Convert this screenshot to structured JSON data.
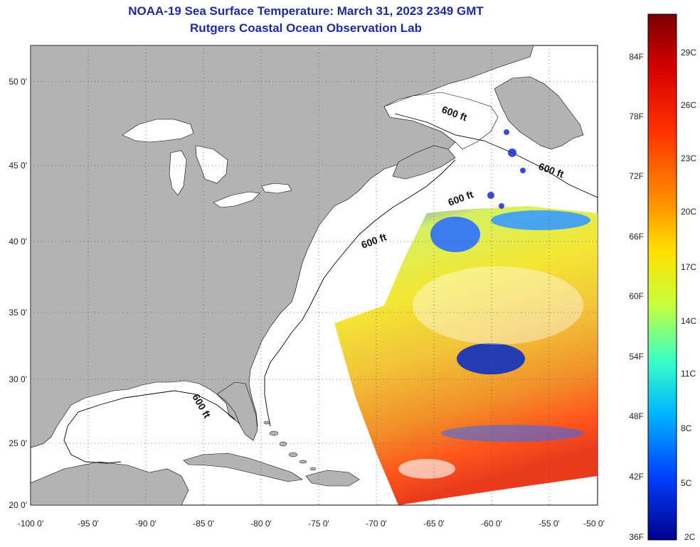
{
  "header": {
    "title": "NOAA-19 Sea Surface Temperature:  March 31, 2023 2349 GMT",
    "subtitle": "Rutgers Coastal Ocean Observation Lab"
  },
  "map": {
    "lat_labels": [
      "50 0'",
      "45 0'",
      "40 0'",
      "35 0'",
      "30 0'",
      "25 0'",
      "20 0'"
    ],
    "lon_labels": [
      "-100 0'",
      "-95 0'",
      "-90 0'",
      "-85 0'",
      "-80 0'",
      "-75 0'",
      "-70 0'",
      "-65 0'",
      "-60 0'",
      "-55 0'",
      "-50 0'"
    ],
    "contour_labels": [
      "600 ft",
      "600 ft",
      "600 ft",
      "600 ft",
      "600 ft"
    ],
    "colors": {
      "land": "#b3b3b3",
      "water": "#ffffff",
      "grid": "#555555"
    }
  },
  "colorbar": {
    "f_labels": [
      "84F",
      "78F",
      "72F",
      "66F",
      "60F",
      "54F",
      "48F",
      "42F",
      "36F"
    ],
    "c_labels": [
      "29C",
      "26C",
      "23C",
      "20C",
      "17C",
      "14C",
      "11C",
      "8C",
      "5C",
      "2C"
    ],
    "colors": [
      "#7a0000",
      "#d40000",
      "#ff3000",
      "#ff8a00",
      "#ffe000",
      "#c8ff3a",
      "#3affc8",
      "#00b4ff",
      "#0040ff",
      "#00008c"
    ]
  }
}
